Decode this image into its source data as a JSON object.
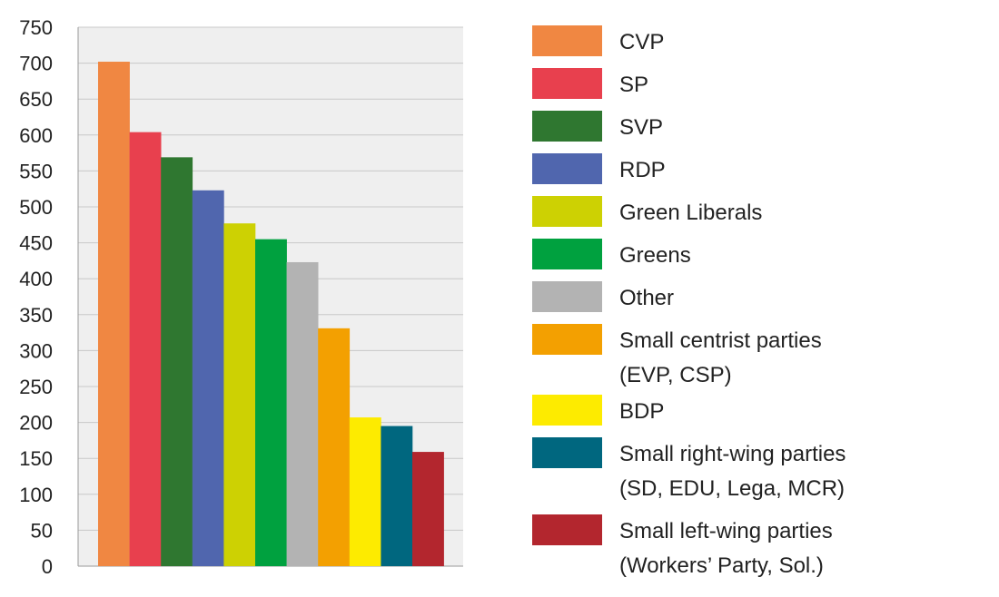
{
  "chart_data": {
    "type": "bar",
    "title": "",
    "xlabel": "",
    "ylabel": "",
    "ylim": [
      0,
      750
    ],
    "yticks": [
      0,
      50,
      100,
      150,
      200,
      250,
      300,
      350,
      400,
      450,
      500,
      550,
      600,
      650,
      700,
      750
    ],
    "grid": "horizontal",
    "legend_position": "right",
    "categories": [
      "CVP",
      "SP",
      "SVP",
      "RDP",
      "Green Liberals",
      "Greens",
      "Other",
      "Small centrist parties (EVP, CSP)",
      "BDP",
      "Small right-wing parties (SD, EDU, Lega, MCR)",
      "Small left-wing parties (Workers’ Party, Sol.)"
    ],
    "values": [
      702,
      604,
      569,
      523,
      477,
      455,
      423,
      331,
      207,
      195,
      159
    ],
    "colors": [
      "#F08742",
      "#E8404E",
      "#2F7730",
      "#5066AE",
      "#CDD103",
      "#00A13F",
      "#B3B3B3",
      "#F3A001",
      "#FDEB00",
      "#00677F",
      "#B3262E"
    ],
    "legend": [
      {
        "lines": [
          "CVP"
        ]
      },
      {
        "lines": [
          "SP"
        ]
      },
      {
        "lines": [
          "SVP"
        ]
      },
      {
        "lines": [
          "RDP"
        ]
      },
      {
        "lines": [
          "Green Liberals"
        ]
      },
      {
        "lines": [
          "Greens"
        ]
      },
      {
        "lines": [
          "Other"
        ]
      },
      {
        "lines": [
          "Small centrist parties",
          "(EVP, CSP)"
        ]
      },
      {
        "lines": [
          "BDP"
        ]
      },
      {
        "lines": [
          "Small right-wing parties",
          "(SD, EDU, Lega, MCR)"
        ]
      },
      {
        "lines": [
          "Small left-wing parties",
          "(Workers’ Party, Sol.)"
        ]
      }
    ],
    "plot_background": "#EFEFEF",
    "grid_color": "#C8C8C8"
  }
}
